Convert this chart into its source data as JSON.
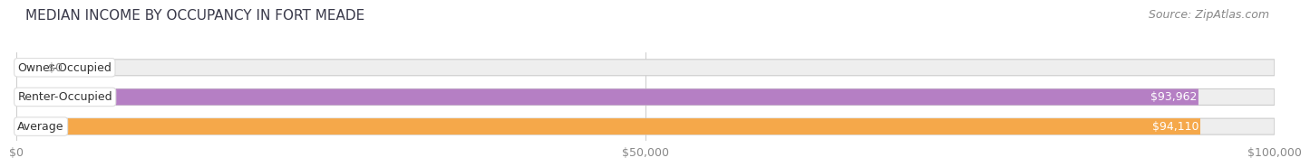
{
  "title": "MEDIAN INCOME BY OCCUPANCY IN FORT MEADE",
  "source": "Source: ZipAtlas.com",
  "categories": [
    "Owner-Occupied",
    "Renter-Occupied",
    "Average"
  ],
  "values": [
    0,
    93962,
    94110
  ],
  "bar_colors": [
    "#6dcdd6",
    "#b57fc4",
    "#f5a84a"
  ],
  "value_labels": [
    "$0",
    "$93,962",
    "$94,110"
  ],
  "xlim": [
    0,
    100000
  ],
  "xticks": [
    0,
    50000,
    100000
  ],
  "xtick_labels": [
    "$0",
    "$50,000",
    "$100,000"
  ],
  "background_color": "#ffffff",
  "bar_background_color": "#eeeeee",
  "title_fontsize": 11,
  "source_fontsize": 9,
  "tick_fontsize": 9,
  "label_fontsize": 9,
  "bar_height": 0.55
}
